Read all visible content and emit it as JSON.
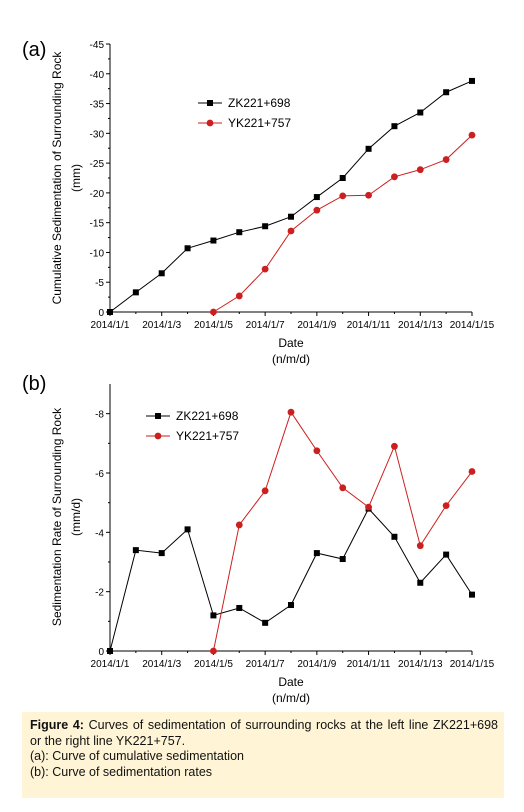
{
  "chart_data": [
    {
      "panel_label": "(a)",
      "type": "line",
      "ylabel": "Cumulative Sedimentation of Surrounding Rock",
      "ylabel_unit": "(mm)",
      "xlabel": "Date",
      "xlabel_unit": "(n/m/d)",
      "x_tick_labels": [
        "2014/1/1",
        "2014/1/3",
        "2014/1/5",
        "2014/1/7",
        "2014/1/9",
        "2014/1/11",
        "2014/1/13",
        "2014/1/15"
      ],
      "y_ticks": [
        0,
        -5,
        -10,
        -15,
        -20,
        -25,
        -30,
        -35,
        -40,
        -45
      ],
      "ylim": [
        0,
        -45
      ],
      "y_axis_inverted": true,
      "xlim": [
        "2014/1/1",
        "2014/1/15"
      ],
      "legend_position": "top-center",
      "series": [
        {
          "name": "ZK221+698",
          "color": "#000000",
          "marker": "square",
          "points": [
            [
              "2014/1/1",
              0
            ],
            [
              "2014/1/2",
              -3.3
            ],
            [
              "2014/1/3",
              -6.5
            ],
            [
              "2014/1/4",
              -10.7
            ],
            [
              "2014/1/5",
              -12
            ],
            [
              "2014/1/6",
              -13.4
            ],
            [
              "2014/1/7",
              -14.4
            ],
            [
              "2014/1/8",
              -16
            ],
            [
              "2014/1/9",
              -19.3
            ],
            [
              "2014/1/10",
              -22.5
            ],
            [
              "2014/1/11",
              -27.4
            ],
            [
              "2014/1/12",
              -31.2
            ],
            [
              "2014/1/13",
              -33.5
            ],
            [
              "2014/1/14",
              -36.9
            ],
            [
              "2014/1/15",
              -38.8
            ]
          ]
        },
        {
          "name": "YK221+757",
          "color": "#cc1f1f",
          "marker": "circle",
          "points": [
            [
              "2014/1/5",
              0
            ],
            [
              "2014/1/6",
              -2.7
            ],
            [
              "2014/1/7",
              -7.2
            ],
            [
              "2014/1/8",
              -13.6
            ],
            [
              "2014/1/9",
              -17.1
            ],
            [
              "2014/1/10",
              -19.5
            ],
            [
              "2014/1/11",
              -19.6
            ],
            [
              "2014/1/12",
              -22.7
            ],
            [
              "2014/1/13",
              -23.9
            ],
            [
              "2014/1/14",
              -25.6
            ],
            [
              "2014/1/15",
              -29.7
            ]
          ]
        }
      ]
    },
    {
      "panel_label": "(b)",
      "type": "line",
      "ylabel": "Sedimentation Rate of Surrounding Rock",
      "ylabel_unit": "(mm/d)",
      "xlabel": "Date",
      "xlabel_unit": "(n/m/d)",
      "x_tick_labels": [
        "2014/1/1",
        "2014/1/3",
        "2014/1/5",
        "2014/1/7",
        "2014/1/9",
        "2014/1/11",
        "2014/1/13",
        "2014/1/15"
      ],
      "y_ticks": [
        0,
        -2,
        -4,
        -6,
        -8
      ],
      "ylim": [
        0,
        -9
      ],
      "y_axis_inverted": true,
      "xlim": [
        "2014/1/1",
        "2014/1/15"
      ],
      "legend_position": "top-left",
      "series": [
        {
          "name": "ZK221+698",
          "color": "#000000",
          "marker": "square",
          "points": [
            [
              "2014/1/1",
              0
            ],
            [
              "2014/1/2",
              -3.4
            ],
            [
              "2014/1/3",
              -3.3
            ],
            [
              "2014/1/4",
              -4.1
            ],
            [
              "2014/1/5",
              -1.2
            ],
            [
              "2014/1/6",
              -1.45
            ],
            [
              "2014/1/7",
              -0.95
            ],
            [
              "2014/1/8",
              -1.55
            ],
            [
              "2014/1/9",
              -3.3
            ],
            [
              "2014/1/10",
              -3.1
            ],
            [
              "2014/1/11",
              -4.8
            ],
            [
              "2014/1/12",
              -3.85
            ],
            [
              "2014/1/13",
              -2.3
            ],
            [
              "2014/1/14",
              -3.25
            ],
            [
              "2014/1/15",
              -1.9
            ]
          ]
        },
        {
          "name": "YK221+757",
          "color": "#cc1f1f",
          "marker": "circle",
          "points": [
            [
              "2014/1/5",
              0
            ],
            [
              "2014/1/6",
              -4.25
            ],
            [
              "2014/1/7",
              -5.4
            ],
            [
              "2014/1/8",
              -8.05
            ],
            [
              "2014/1/9",
              -6.75
            ],
            [
              "2014/1/10",
              -5.5
            ],
            [
              "2014/1/11",
              -4.85
            ],
            [
              "2014/1/12",
              -6.9
            ],
            [
              "2014/1/13",
              -3.55
            ],
            [
              "2014/1/14",
              -4.9
            ],
            [
              "2014/1/15",
              -6.05
            ]
          ]
        }
      ]
    }
  ],
  "caption": {
    "lead": "Figure 4:",
    "line1": "Curves of sedimentation of surrounding rocks at the left line ZK221+698 or the right line YK221+757.",
    "line2": "(a): Curve of cumulative sedimentation",
    "line3": "(b): Curve of sedimentation rates"
  },
  "colors": {
    "caption_background": "#fff5d6",
    "series_black": "#000000",
    "series_red": "#cc1f1f"
  }
}
